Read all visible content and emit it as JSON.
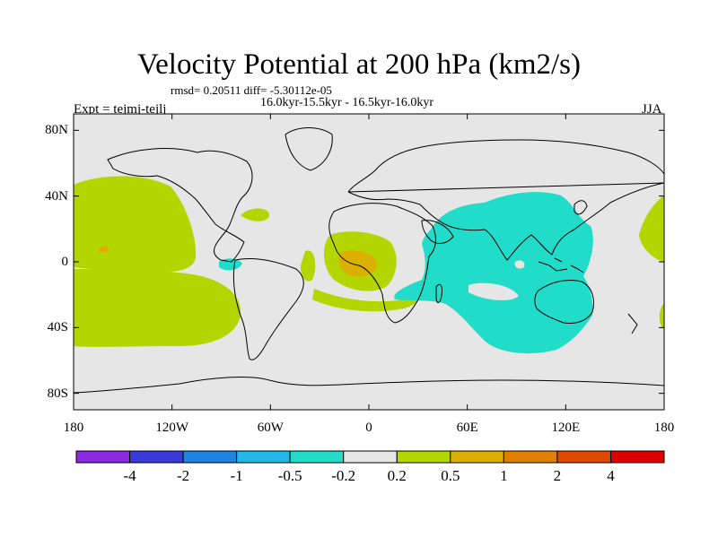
{
  "title": "Velocity Potential at 200 hPa (km2/s)",
  "stats": "rmsd= 0.20511  diff= -5.30112e-05",
  "period": "16.0kyr-15.5kyr - 16.5kyr-16.0kyr",
  "experiment": "Expt = tejmj-tejlj",
  "season": "JJA",
  "lat_labels": [
    {
      "lat": 80,
      "label": "80N"
    },
    {
      "lat": 40,
      "label": "40N"
    },
    {
      "lat": 0,
      "label": "0"
    },
    {
      "lat": -40,
      "label": "40S"
    },
    {
      "lat": -80,
      "label": "80S"
    }
  ],
  "lon_labels": [
    {
      "lon": -180,
      "label": "180"
    },
    {
      "lon": -120,
      "label": "120W"
    },
    {
      "lon": -60,
      "label": "60W"
    },
    {
      "lon": 0,
      "label": "0"
    },
    {
      "lon": 60,
      "label": "60E"
    },
    {
      "lon": 120,
      "label": "120E"
    },
    {
      "lon": 180,
      "label": "180"
    }
  ],
  "colorbar": {
    "colors": [
      "#8a2be2",
      "#3a3ad8",
      "#1f83e0",
      "#22b8e8",
      "#20dcc8",
      "#e6e6e6",
      "#b4d600",
      "#dcb000",
      "#e08000",
      "#e04a00",
      "#dc0000"
    ],
    "labels": [
      "-4",
      "-2",
      "-1",
      "-0.5",
      "-0.2",
      "0.2",
      "0.5",
      "1",
      "2",
      "4"
    ]
  },
  "colors": {
    "neutral": "#e6e6e6",
    "positive_weak": "#b4d600",
    "positive_mid": "#dcb000",
    "positive_strong": "#e08000",
    "negative_weak": "#20dcc8"
  }
}
